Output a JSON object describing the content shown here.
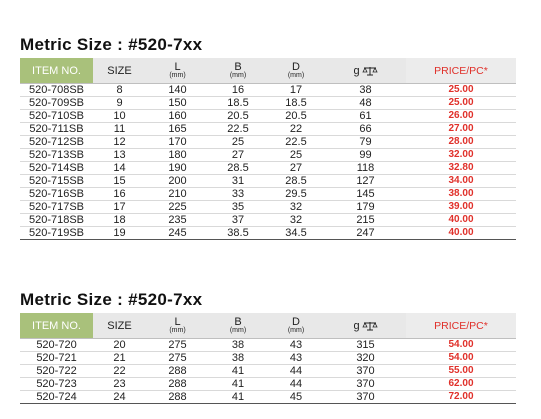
{
  "headers": {
    "item_no": "ITEM NO.",
    "size": "SIZE",
    "L": "L",
    "B": "B",
    "D": "D",
    "unit": "(mm)",
    "weight": "g",
    "weight_icon": "scale-icon",
    "price": "PRICE/PC*"
  },
  "colors": {
    "header_green": "#a9c17b",
    "price_red": "#e0302a",
    "header_gray": "#e8e8e8"
  },
  "sections": [
    {
      "title": "Metric Size : #520-7xx",
      "rows": [
        {
          "item": "520-708SB",
          "size": "8",
          "L": "140",
          "B": "16",
          "D": "17",
          "g": "38",
          "price": "25.00"
        },
        {
          "item": "520-709SB",
          "size": "9",
          "L": "150",
          "B": "18.5",
          "D": "18.5",
          "g": "48",
          "price": "25.00"
        },
        {
          "item": "520-710SB",
          "size": "10",
          "L": "160",
          "B": "20.5",
          "D": "20.5",
          "g": "61",
          "price": "26.00"
        },
        {
          "item": "520-711SB",
          "size": "11",
          "L": "165",
          "B": "22.5",
          "D": "22",
          "g": "66",
          "price": "27.00"
        },
        {
          "item": "520-712SB",
          "size": "12",
          "L": "170",
          "B": "25",
          "D": "22.5",
          "g": "79",
          "price": "28.00"
        },
        {
          "item": "520-713SB",
          "size": "13",
          "L": "180",
          "B": "27",
          "D": "25",
          "g": "99",
          "price": "32.00"
        },
        {
          "item": "520-714SB",
          "size": "14",
          "L": "190",
          "B": "28.5",
          "D": "27",
          "g": "118",
          "price": "32.80"
        },
        {
          "item": "520-715SB",
          "size": "15",
          "L": "200",
          "B": "31",
          "D": "28.5",
          "g": "127",
          "price": "34.00"
        },
        {
          "item": "520-716SB",
          "size": "16",
          "L": "210",
          "B": "33",
          "D": "29.5",
          "g": "145",
          "price": "38.00"
        },
        {
          "item": "520-717SB",
          "size": "17",
          "L": "225",
          "B": "35",
          "D": "32",
          "g": "179",
          "price": "39.00"
        },
        {
          "item": "520-718SB",
          "size": "18",
          "L": "235",
          "B": "37",
          "D": "32",
          "g": "215",
          "price": "40.00"
        },
        {
          "item": "520-719SB",
          "size": "19",
          "L": "245",
          "B": "38.5",
          "D": "34.5",
          "g": "247",
          "price": "40.00"
        }
      ]
    },
    {
      "title": "Metric Size : #520-7xx",
      "rows": [
        {
          "item": "520-720",
          "size": "20",
          "L": "275",
          "B": "38",
          "D": "43",
          "g": "315",
          "price": "54.00"
        },
        {
          "item": "520-721",
          "size": "21",
          "L": "275",
          "B": "38",
          "D": "43",
          "g": "320",
          "price": "54.00"
        },
        {
          "item": "520-722",
          "size": "22",
          "L": "288",
          "B": "41",
          "D": "44",
          "g": "370",
          "price": "55.00"
        },
        {
          "item": "520-723",
          "size": "23",
          "L": "288",
          "B": "41",
          "D": "44",
          "g": "370",
          "price": "62.00"
        },
        {
          "item": "520-724",
          "size": "24",
          "L": "288",
          "B": "41",
          "D": "45",
          "g": "370",
          "price": "72.00"
        }
      ]
    }
  ]
}
